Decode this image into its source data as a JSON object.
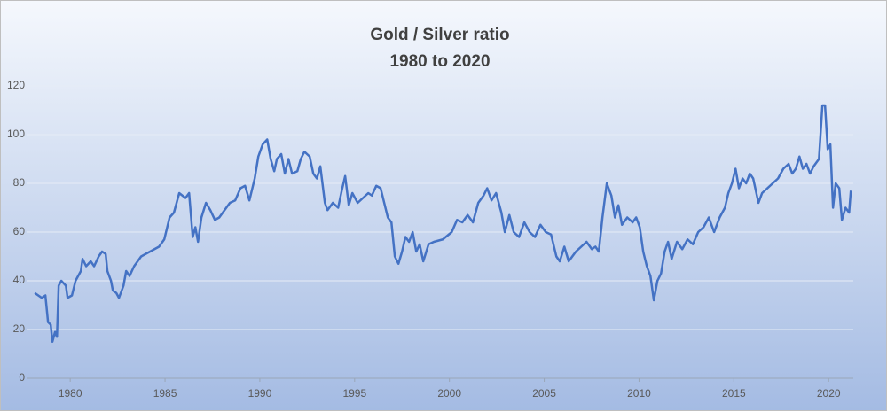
{
  "chart_data": {
    "type": "line",
    "title": "Gold / Silver ratio",
    "subtitle": "1980 to 2020",
    "color": "#4472c4",
    "grid": true,
    "xlim": [
      1977.7,
      2021.3
    ],
    "xticks": [
      1980,
      1985,
      1990,
      1995,
      2000,
      2005,
      2010,
      2015,
      2020
    ],
    "ylim": [
      0,
      120
    ],
    "yticks": [
      0,
      20,
      40,
      60,
      80,
      100,
      120
    ],
    "x": [
      1978.13,
      1978.5,
      1978.69,
      1978.83,
      1978.97,
      1979.06,
      1979.2,
      1979.3,
      1979.39,
      1979.53,
      1979.77,
      1979.86,
      1980.09,
      1980.28,
      1980.56,
      1980.65,
      1980.84,
      1981.08,
      1981.26,
      1981.5,
      1981.68,
      1981.87,
      1981.96,
      1982.15,
      1982.25,
      1982.43,
      1982.57,
      1982.81,
      1982.95,
      1983.13,
      1983.37,
      1983.74,
      1984.21,
      1984.68,
      1984.96,
      1985.24,
      1985.47,
      1985.75,
      1986.08,
      1986.27,
      1986.46,
      1986.6,
      1986.74,
      1986.92,
      1987.16,
      1987.39,
      1987.63,
      1987.86,
      1988.14,
      1988.42,
      1988.7,
      1988.98,
      1989.22,
      1989.45,
      1989.73,
      1989.92,
      1990.15,
      1990.39,
      1990.57,
      1990.76,
      1990.9,
      1991.13,
      1991.32,
      1991.51,
      1991.7,
      1991.98,
      1992.16,
      1992.35,
      1992.63,
      1992.82,
      1993.01,
      1993.19,
      1993.43,
      1993.57,
      1993.85,
      1994.13,
      1994.32,
      1994.5,
      1994.69,
      1994.88,
      1995.16,
      1995.44,
      1995.72,
      1995.91,
      1996.14,
      1996.37,
      1996.56,
      1996.75,
      1996.94,
      1997.12,
      1997.31,
      1997.5,
      1997.68,
      1997.87,
      1998.06,
      1998.25,
      1998.43,
      1998.62,
      1998.9,
      1999.18,
      1999.65,
      2000.12,
      2000.4,
      2000.68,
      2000.96,
      2001.24,
      2001.52,
      2001.8,
      2001.99,
      2002.22,
      2002.46,
      2002.74,
      2002.92,
      2003.16,
      2003.39,
      2003.67,
      2003.95,
      2004.23,
      2004.51,
      2004.8,
      2005.08,
      2005.36,
      2005.64,
      2005.82,
      2006.06,
      2006.29,
      2006.67,
      2006.95,
      2007.23,
      2007.51,
      2007.7,
      2007.88,
      2008.07,
      2008.3,
      2008.54,
      2008.73,
      2008.91,
      2009.1,
      2009.38,
      2009.66,
      2009.85,
      2010.04,
      2010.22,
      2010.41,
      2010.6,
      2010.78,
      2010.97,
      2011.16,
      2011.35,
      2011.53,
      2011.72,
      2012.0,
      2012.28,
      2012.56,
      2012.84,
      2013.12,
      2013.4,
      2013.68,
      2013.96,
      2014.25,
      2014.53,
      2014.71,
      2014.9,
      2015.09,
      2015.27,
      2015.46,
      2015.65,
      2015.84,
      2016.02,
      2016.3,
      2016.49,
      2016.77,
      2017.05,
      2017.33,
      2017.61,
      2017.89,
      2018.08,
      2018.27,
      2018.46,
      2018.64,
      2018.83,
      2019.02,
      2019.21,
      2019.49,
      2019.67,
      2019.81,
      2019.95,
      2020.09,
      2020.23,
      2020.37,
      2020.56,
      2020.7,
      2020.89,
      2021.08,
      2021.17
    ],
    "values": [
      35,
      33,
      34,
      23,
      22,
      15,
      19,
      17,
      38,
      40,
      38,
      33,
      34,
      40,
      44,
      49,
      46,
      48,
      46,
      50,
      52,
      51,
      44,
      40,
      36,
      35,
      33,
      38,
      44,
      42,
      46,
      50,
      52,
      54,
      57,
      66,
      68,
      76,
      74,
      76,
      58,
      62,
      56,
      66,
      72,
      69,
      65,
      66,
      69,
      72,
      73,
      78,
      79,
      73,
      82,
      91,
      96,
      98,
      90,
      85,
      90,
      92,
      84,
      90,
      84,
      85,
      90,
      93,
      91,
      84,
      82,
      87,
      72,
      69,
      72,
      70,
      77,
      83,
      71,
      76,
      72,
      74,
      76,
      75,
      79,
      78,
      72,
      66,
      64,
      50,
      47,
      52,
      58,
      56,
      60,
      52,
      55,
      48,
      55,
      56,
      57,
      60,
      65,
      64,
      67,
      64,
      72,
      75,
      78,
      73,
      76,
      68,
      60,
      67,
      60,
      58,
      64,
      60,
      58,
      63,
      60,
      59,
      50,
      48,
      54,
      48,
      52,
      54,
      56,
      53,
      54,
      52,
      66,
      80,
      75,
      66,
      71,
      63,
      66,
      64,
      66,
      62,
      52,
      46,
      42,
      32,
      40,
      43,
      52,
      56,
      49,
      56,
      53,
      57,
      55,
      60,
      62,
      66,
      60,
      66,
      70,
      76,
      80,
      86,
      78,
      82,
      80,
      84,
      82,
      72,
      76,
      78,
      80,
      82,
      86,
      88,
      84,
      86,
      91,
      86,
      88,
      84,
      87,
      90,
      112,
      112,
      94,
      96,
      70,
      80,
      78,
      65,
      70,
      68,
      77
    ]
  }
}
